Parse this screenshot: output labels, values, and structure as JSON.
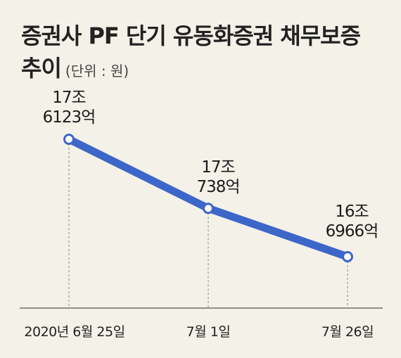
{
  "chart_data": {
    "type": "line",
    "title": "증권사 PF 단기 유동화증권 채무보증",
    "title_line2": "추이",
    "unit_note": "(단위 : 원)",
    "categories": [
      "2020년 6월 25일",
      "7월 1일",
      "7월 26일"
    ],
    "values": [
      176123,
      170738,
      166966
    ],
    "value_unit": "억원",
    "data_labels": [
      [
        "17조",
        "6123억"
      ],
      [
        "17조",
        "738억"
      ],
      [
        "16조",
        "6966억"
      ]
    ],
    "ylim": [
      160000,
      180000
    ],
    "grid": false,
    "legend": "none",
    "colors": {
      "line": "#3d66c9",
      "marker_fill": "#ffffff",
      "guide": "#888888",
      "axis": "#555555"
    }
  }
}
